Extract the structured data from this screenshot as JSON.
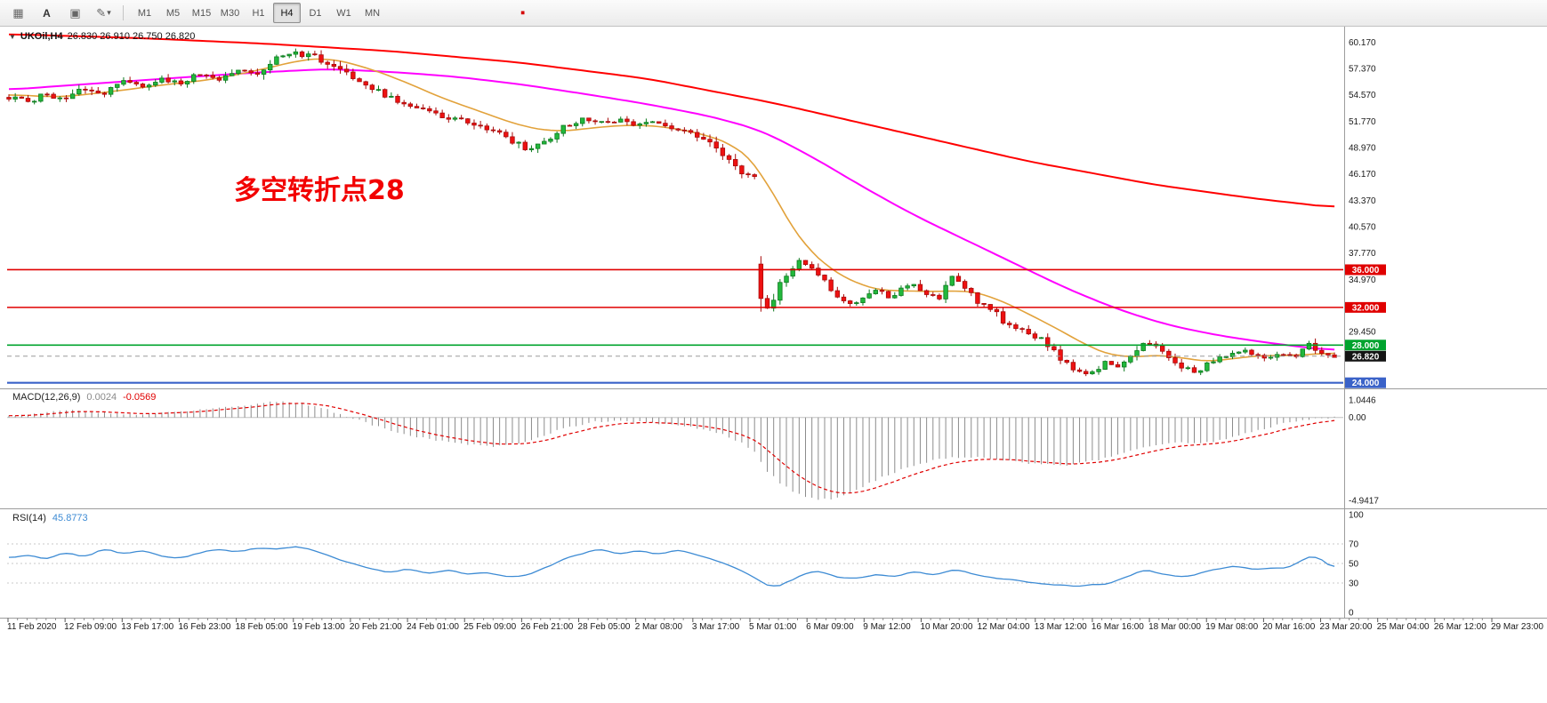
{
  "toolbar": {
    "text_tool_label": "A",
    "icon_names": [
      "grid-icon",
      "text-tool-icon",
      "panel-icon",
      "draw-tool-icon",
      "chevron-down-icon",
      "red-marker-icon"
    ],
    "timeframes": [
      {
        "label": "M1",
        "active": false
      },
      {
        "label": "M5",
        "active": false
      },
      {
        "label": "M15",
        "active": false
      },
      {
        "label": "M30",
        "active": false
      },
      {
        "label": "H1",
        "active": false
      },
      {
        "label": "H4",
        "active": true
      },
      {
        "label": "D1",
        "active": false
      },
      {
        "label": "W1",
        "active": false
      },
      {
        "label": "MN",
        "active": false
      }
    ]
  },
  "chart": {
    "title_symbol": "UKOil,H4",
    "title_ohlc": "26.830 26.910 26.750 26.820",
    "annotation_text": "多空转折点28",
    "annotation_color": "#f20000",
    "price_axis_labels": [
      {
        "text": "60.170",
        "price": 60.17
      },
      {
        "text": "57.370",
        "price": 57.37
      },
      {
        "text": "54.570",
        "price": 54.57
      },
      {
        "text": "51.770",
        "price": 51.77
      },
      {
        "text": "48.970",
        "price": 48.97
      },
      {
        "text": "46.170",
        "price": 46.17
      },
      {
        "text": "43.370",
        "price": 43.37
      },
      {
        "text": "40.570",
        "price": 40.57
      },
      {
        "text": "37.770",
        "price": 37.77
      },
      {
        "text": "34.970",
        "price": 34.97
      },
      {
        "text": "29.450",
        "price": 29.45
      }
    ],
    "hlines": [
      {
        "price": 36.0,
        "color": "#e00000",
        "tag": "36.000",
        "width": 1.6
      },
      {
        "price": 32.0,
        "color": "#e00000",
        "tag": "32.000",
        "width": 1.6
      },
      {
        "price": 28.0,
        "color": "#00a32e",
        "tag": "28.000",
        "width": 1.6
      },
      {
        "price": 24.0,
        "color": "#3a62c8",
        "tag": "24.000",
        "width": 2.2
      }
    ],
    "bid": {
      "value": 26.82,
      "tag": "26.820",
      "tag_bg": "#141414",
      "line_color": "#9a9a9a"
    },
    "colors": {
      "up": "#22b83c",
      "up_stroke": "#0d7a1e",
      "down": "#ee1111",
      "down_stroke": "#a80b0b"
    }
  },
  "indicators": {
    "macd": {
      "label": "MACD(12,26,9)",
      "main_value": "0.0024",
      "signal_value": "-0.0569",
      "axis_labels": [
        {
          "text": "1.0446",
          "value": 1.0446
        },
        {
          "text": "0.00",
          "value": 0
        },
        {
          "text": "-4.9417",
          "value": -4.9417
        }
      ],
      "histogram_color": "#8c8c8c",
      "signal_color": "#e00000"
    },
    "rsi": {
      "label": "RSI(14)",
      "value": "45.8773",
      "axis_labels": [
        {
          "text": "100",
          "value": 100
        },
        {
          "text": "70",
          "value": 70
        },
        {
          "text": "50",
          "value": 50
        },
        {
          "text": "30",
          "value": 30
        },
        {
          "text": "0",
          "value": 0
        }
      ],
      "levels": [
        70,
        50,
        30
      ],
      "line_color": "#3d8bd4"
    }
  },
  "time_axis": {
    "labels": [
      "11 Feb 2020",
      "12 Feb 09:00",
      "13 Feb 17:00",
      "16 Feb 23:00",
      "18 Feb 05:00",
      "19 Feb 13:00",
      "20 Feb 21:00",
      "24 Feb 01:00",
      "25 Feb 09:00",
      "26 Feb 21:00",
      "28 Feb 05:00",
      "2 Mar 08:00",
      "3 Mar 17:00",
      "5 Mar 01:00",
      "6 Mar 09:00",
      "9 Mar 12:00",
      "10 Mar 20:00",
      "12 Mar 04:00",
      "13 Mar 12:00",
      "16 Mar 16:00",
      "18 Mar 00:00",
      "19 Mar 08:00",
      "20 Mar 16:00",
      "23 Mar 20:00",
      "25 Mar 04:00",
      "26 Mar 12:00",
      "29 Mar 23:00"
    ]
  },
  "chart_data": {
    "type": "candlestick",
    "symbol": "UKOil",
    "timeframe": "H4",
    "bars": 209,
    "price_range_visible": [
      23.5,
      61.8
    ],
    "price_path": [
      [
        0,
        54.3
      ],
      [
        3,
        53.9
      ],
      [
        6,
        54.6
      ],
      [
        9,
        54.1
      ],
      [
        12,
        55.3
      ],
      [
        15,
        54.7
      ],
      [
        18,
        55.9
      ],
      [
        21,
        55.4
      ],
      [
        24,
        56.4
      ],
      [
        27,
        55.7
      ],
      [
        30,
        56.8
      ],
      [
        33,
        56.2
      ],
      [
        36,
        57.4
      ],
      [
        39,
        57.0
      ],
      [
        42,
        58.5
      ],
      [
        45,
        59.0
      ],
      [
        48,
        58.6
      ],
      [
        51,
        57.6
      ],
      [
        54,
        56.2
      ],
      [
        58,
        54.9
      ],
      [
        62,
        53.5
      ],
      [
        66,
        52.7
      ],
      [
        70,
        52.0
      ],
      [
        74,
        51.2
      ],
      [
        78,
        50.1
      ],
      [
        81,
        48.9
      ],
      [
        84,
        49.6
      ],
      [
        87,
        51.1
      ],
      [
        90,
        52.2
      ],
      [
        93,
        51.6
      ],
      [
        96,
        51.9
      ],
      [
        99,
        51.3
      ],
      [
        102,
        51.6
      ],
      [
        105,
        50.8
      ],
      [
        108,
        50.1
      ],
      [
        111,
        48.9
      ],
      [
        114,
        47.3
      ],
      [
        117,
        45.0
      ],
      [
        118,
        33.8
      ],
      [
        119,
        31.9
      ],
      [
        120,
        33.2
      ],
      [
        122,
        35.3
      ],
      [
        124,
        36.8
      ],
      [
        126,
        36.0
      ],
      [
        128,
        34.6
      ],
      [
        130,
        33.2
      ],
      [
        132,
        32.4
      ],
      [
        134,
        32.9
      ],
      [
        136,
        33.8
      ],
      [
        138,
        33.1
      ],
      [
        140,
        33.9
      ],
      [
        142,
        34.6
      ],
      [
        144,
        33.4
      ],
      [
        146,
        33.0
      ],
      [
        148,
        35.1
      ],
      [
        150,
        34.1
      ],
      [
        152,
        32.6
      ],
      [
        154,
        32.0
      ],
      [
        156,
        30.6
      ],
      [
        158,
        30.0
      ],
      [
        160,
        29.4
      ],
      [
        162,
        28.6
      ],
      [
        164,
        27.3
      ],
      [
        166,
        26.0
      ],
      [
        168,
        25.2
      ],
      [
        170,
        25.0
      ],
      [
        172,
        26.1
      ],
      [
        174,
        25.7
      ],
      [
        176,
        26.8
      ],
      [
        178,
        28.2
      ],
      [
        180,
        27.8
      ],
      [
        182,
        26.7
      ],
      [
        184,
        25.8
      ],
      [
        186,
        25.1
      ],
      [
        188,
        25.9
      ],
      [
        190,
        26.7
      ],
      [
        192,
        27.2
      ],
      [
        194,
        27.4
      ],
      [
        196,
        26.9
      ],
      [
        198,
        26.6
      ],
      [
        200,
        27.0
      ],
      [
        202,
        26.7
      ],
      [
        203,
        27.9
      ],
      [
        204,
        28.3
      ],
      [
        205,
        27.4
      ],
      [
        206,
        27.0
      ],
      [
        208,
        26.8
      ]
    ],
    "ma_fast_path": [
      [
        0,
        54.6
      ],
      [
        8,
        54.3
      ],
      [
        16,
        54.9
      ],
      [
        24,
        55.6
      ],
      [
        32,
        56.2
      ],
      [
        40,
        57.3
      ],
      [
        46,
        58.3
      ],
      [
        50,
        58.5
      ],
      [
        56,
        57.5
      ],
      [
        62,
        56.0
      ],
      [
        68,
        54.2
      ],
      [
        74,
        52.8
      ],
      [
        80,
        51.3
      ],
      [
        86,
        50.6
      ],
      [
        92,
        51.1
      ],
      [
        98,
        51.4
      ],
      [
        104,
        51.1
      ],
      [
        110,
        50.2
      ],
      [
        114,
        49.2
      ],
      [
        118,
        46.8
      ],
      [
        121,
        42.5
      ],
      [
        124,
        39.3
      ],
      [
        127,
        37.0
      ],
      [
        130,
        35.6
      ],
      [
        134,
        34.2
      ],
      [
        138,
        33.7
      ],
      [
        142,
        33.8
      ],
      [
        146,
        33.6
      ],
      [
        150,
        33.9
      ],
      [
        154,
        33.2
      ],
      [
        158,
        32.0
      ],
      [
        162,
        30.6
      ],
      [
        166,
        29.2
      ],
      [
        170,
        27.6
      ],
      [
        174,
        26.7
      ],
      [
        178,
        26.8
      ],
      [
        182,
        27.0
      ],
      [
        186,
        26.3
      ],
      [
        190,
        26.3
      ],
      [
        194,
        26.8
      ],
      [
        198,
        26.9
      ],
      [
        202,
        26.9
      ],
      [
        208,
        27.2
      ]
    ],
    "ma_mid_path": [
      [
        0,
        55.1
      ],
      [
        12,
        55.7
      ],
      [
        25,
        56.3
      ],
      [
        38,
        56.9
      ],
      [
        50,
        57.3
      ],
      [
        60,
        57.0
      ],
      [
        70,
        56.5
      ],
      [
        80,
        55.7
      ],
      [
        90,
        54.7
      ],
      [
        100,
        53.6
      ],
      [
        110,
        52.3
      ],
      [
        118,
        50.8
      ],
      [
        126,
        48.0
      ],
      [
        134,
        44.8
      ],
      [
        142,
        41.8
      ],
      [
        150,
        39.2
      ],
      [
        158,
        36.6
      ],
      [
        166,
        34.0
      ],
      [
        174,
        31.8
      ],
      [
        182,
        30.1
      ],
      [
        190,
        29.0
      ],
      [
        198,
        28.2
      ],
      [
        208,
        27.4
      ]
    ],
    "ma_slow_path": [
      [
        0,
        61.0
      ],
      [
        20,
        60.6
      ],
      [
        40,
        60.0
      ],
      [
        60,
        59.2
      ],
      [
        80,
        58.0
      ],
      [
        100,
        56.3
      ],
      [
        120,
        53.7
      ],
      [
        140,
        50.6
      ],
      [
        160,
        47.5
      ],
      [
        180,
        45.0
      ],
      [
        195,
        43.6
      ],
      [
        208,
        42.6
      ]
    ],
    "ma_colors": {
      "fast": "#e2a23b",
      "mid": "#ff00ff",
      "slow": "#ff0000"
    },
    "macd_path": [
      [
        0,
        0.1
      ],
      [
        5,
        0.25
      ],
      [
        10,
        0.45
      ],
      [
        15,
        0.3
      ],
      [
        20,
        0.15
      ],
      [
        25,
        0.3
      ],
      [
        30,
        0.45
      ],
      [
        36,
        0.7
      ],
      [
        42,
        0.95
      ],
      [
        46,
        0.85
      ],
      [
        50,
        0.45
      ],
      [
        54,
        -0.05
      ],
      [
        58,
        -0.55
      ],
      [
        64,
        -1.15
      ],
      [
        70,
        -1.55
      ],
      [
        76,
        -1.7
      ],
      [
        80,
        -1.55
      ],
      [
        84,
        -1.05
      ],
      [
        88,
        -0.55
      ],
      [
        92,
        -0.25
      ],
      [
        96,
        -0.2
      ],
      [
        100,
        -0.3
      ],
      [
        104,
        -0.45
      ],
      [
        108,
        -0.65
      ],
      [
        112,
        -1.0
      ],
      [
        115,
        -1.5
      ],
      [
        117,
        -2.1
      ],
      [
        119,
        -3.2
      ],
      [
        121,
        -3.9
      ],
      [
        123,
        -4.4
      ],
      [
        125,
        -4.7
      ],
      [
        127,
        -4.9
      ],
      [
        129,
        -4.85
      ],
      [
        131,
        -4.6
      ],
      [
        133,
        -4.3
      ],
      [
        135,
        -3.9
      ],
      [
        138,
        -3.4
      ],
      [
        141,
        -3.0
      ],
      [
        144,
        -2.65
      ],
      [
        147,
        -2.45
      ],
      [
        150,
        -2.35
      ],
      [
        153,
        -2.4
      ],
      [
        156,
        -2.55
      ],
      [
        159,
        -2.7
      ],
      [
        162,
        -2.8
      ],
      [
        165,
        -2.85
      ],
      [
        168,
        -2.75
      ],
      [
        171,
        -2.5
      ],
      [
        174,
        -2.2
      ],
      [
        177,
        -1.85
      ],
      [
        180,
        -1.6
      ],
      [
        183,
        -1.5
      ],
      [
        186,
        -1.55
      ],
      [
        189,
        -1.45
      ],
      [
        192,
        -1.15
      ],
      [
        195,
        -0.85
      ],
      [
        198,
        -0.55
      ],
      [
        201,
        -0.3
      ],
      [
        204,
        -0.1
      ],
      [
        208,
        0.0
      ]
    ],
    "rsi_path": [
      [
        0,
        55
      ],
      [
        3,
        60
      ],
      [
        6,
        53
      ],
      [
        9,
        62
      ],
      [
        12,
        57
      ],
      [
        15,
        65
      ],
      [
        18,
        59
      ],
      [
        21,
        64
      ],
      [
        24,
        58
      ],
      [
        27,
        54
      ],
      [
        30,
        61
      ],
      [
        33,
        65
      ],
      [
        36,
        62
      ],
      [
        39,
        67
      ],
      [
        42,
        64
      ],
      [
        45,
        68
      ],
      [
        48,
        63
      ],
      [
        51,
        56
      ],
      [
        54,
        50
      ],
      [
        57,
        44
      ],
      [
        60,
        41
      ],
      [
        63,
        45
      ],
      [
        66,
        40
      ],
      [
        69,
        44
      ],
      [
        72,
        39
      ],
      [
        75,
        41
      ],
      [
        78,
        37
      ],
      [
        81,
        36
      ],
      [
        84,
        45
      ],
      [
        87,
        54
      ],
      [
        90,
        61
      ],
      [
        93,
        64
      ],
      [
        96,
        59
      ],
      [
        99,
        63
      ],
      [
        102,
        60
      ],
      [
        105,
        64
      ],
      [
        108,
        58
      ],
      [
        111,
        52
      ],
      [
        114,
        46
      ],
      [
        116,
        40
      ],
      [
        118,
        30
      ],
      [
        120,
        25
      ],
      [
        122,
        30
      ],
      [
        124,
        37
      ],
      [
        126,
        42
      ],
      [
        128,
        40
      ],
      [
        130,
        36
      ],
      [
        133,
        34
      ],
      [
        136,
        39
      ],
      [
        139,
        37
      ],
      [
        142,
        42
      ],
      [
        145,
        38
      ],
      [
        148,
        44
      ],
      [
        151,
        40
      ],
      [
        154,
        36
      ],
      [
        157,
        33
      ],
      [
        160,
        31
      ],
      [
        163,
        29
      ],
      [
        166,
        27
      ],
      [
        168,
        25
      ],
      [
        170,
        30
      ],
      [
        172,
        29
      ],
      [
        174,
        33
      ],
      [
        176,
        38
      ],
      [
        178,
        44
      ],
      [
        180,
        41
      ],
      [
        182,
        38
      ],
      [
        184,
        35
      ],
      [
        186,
        38
      ],
      [
        188,
        42
      ],
      [
        190,
        45
      ],
      [
        192,
        48
      ],
      [
        194,
        45
      ],
      [
        196,
        43
      ],
      [
        198,
        46
      ],
      [
        200,
        44
      ],
      [
        202,
        50
      ],
      [
        204,
        56
      ],
      [
        205,
        58
      ],
      [
        206,
        52
      ],
      [
        207,
        49
      ],
      [
        208,
        46
      ]
    ]
  }
}
